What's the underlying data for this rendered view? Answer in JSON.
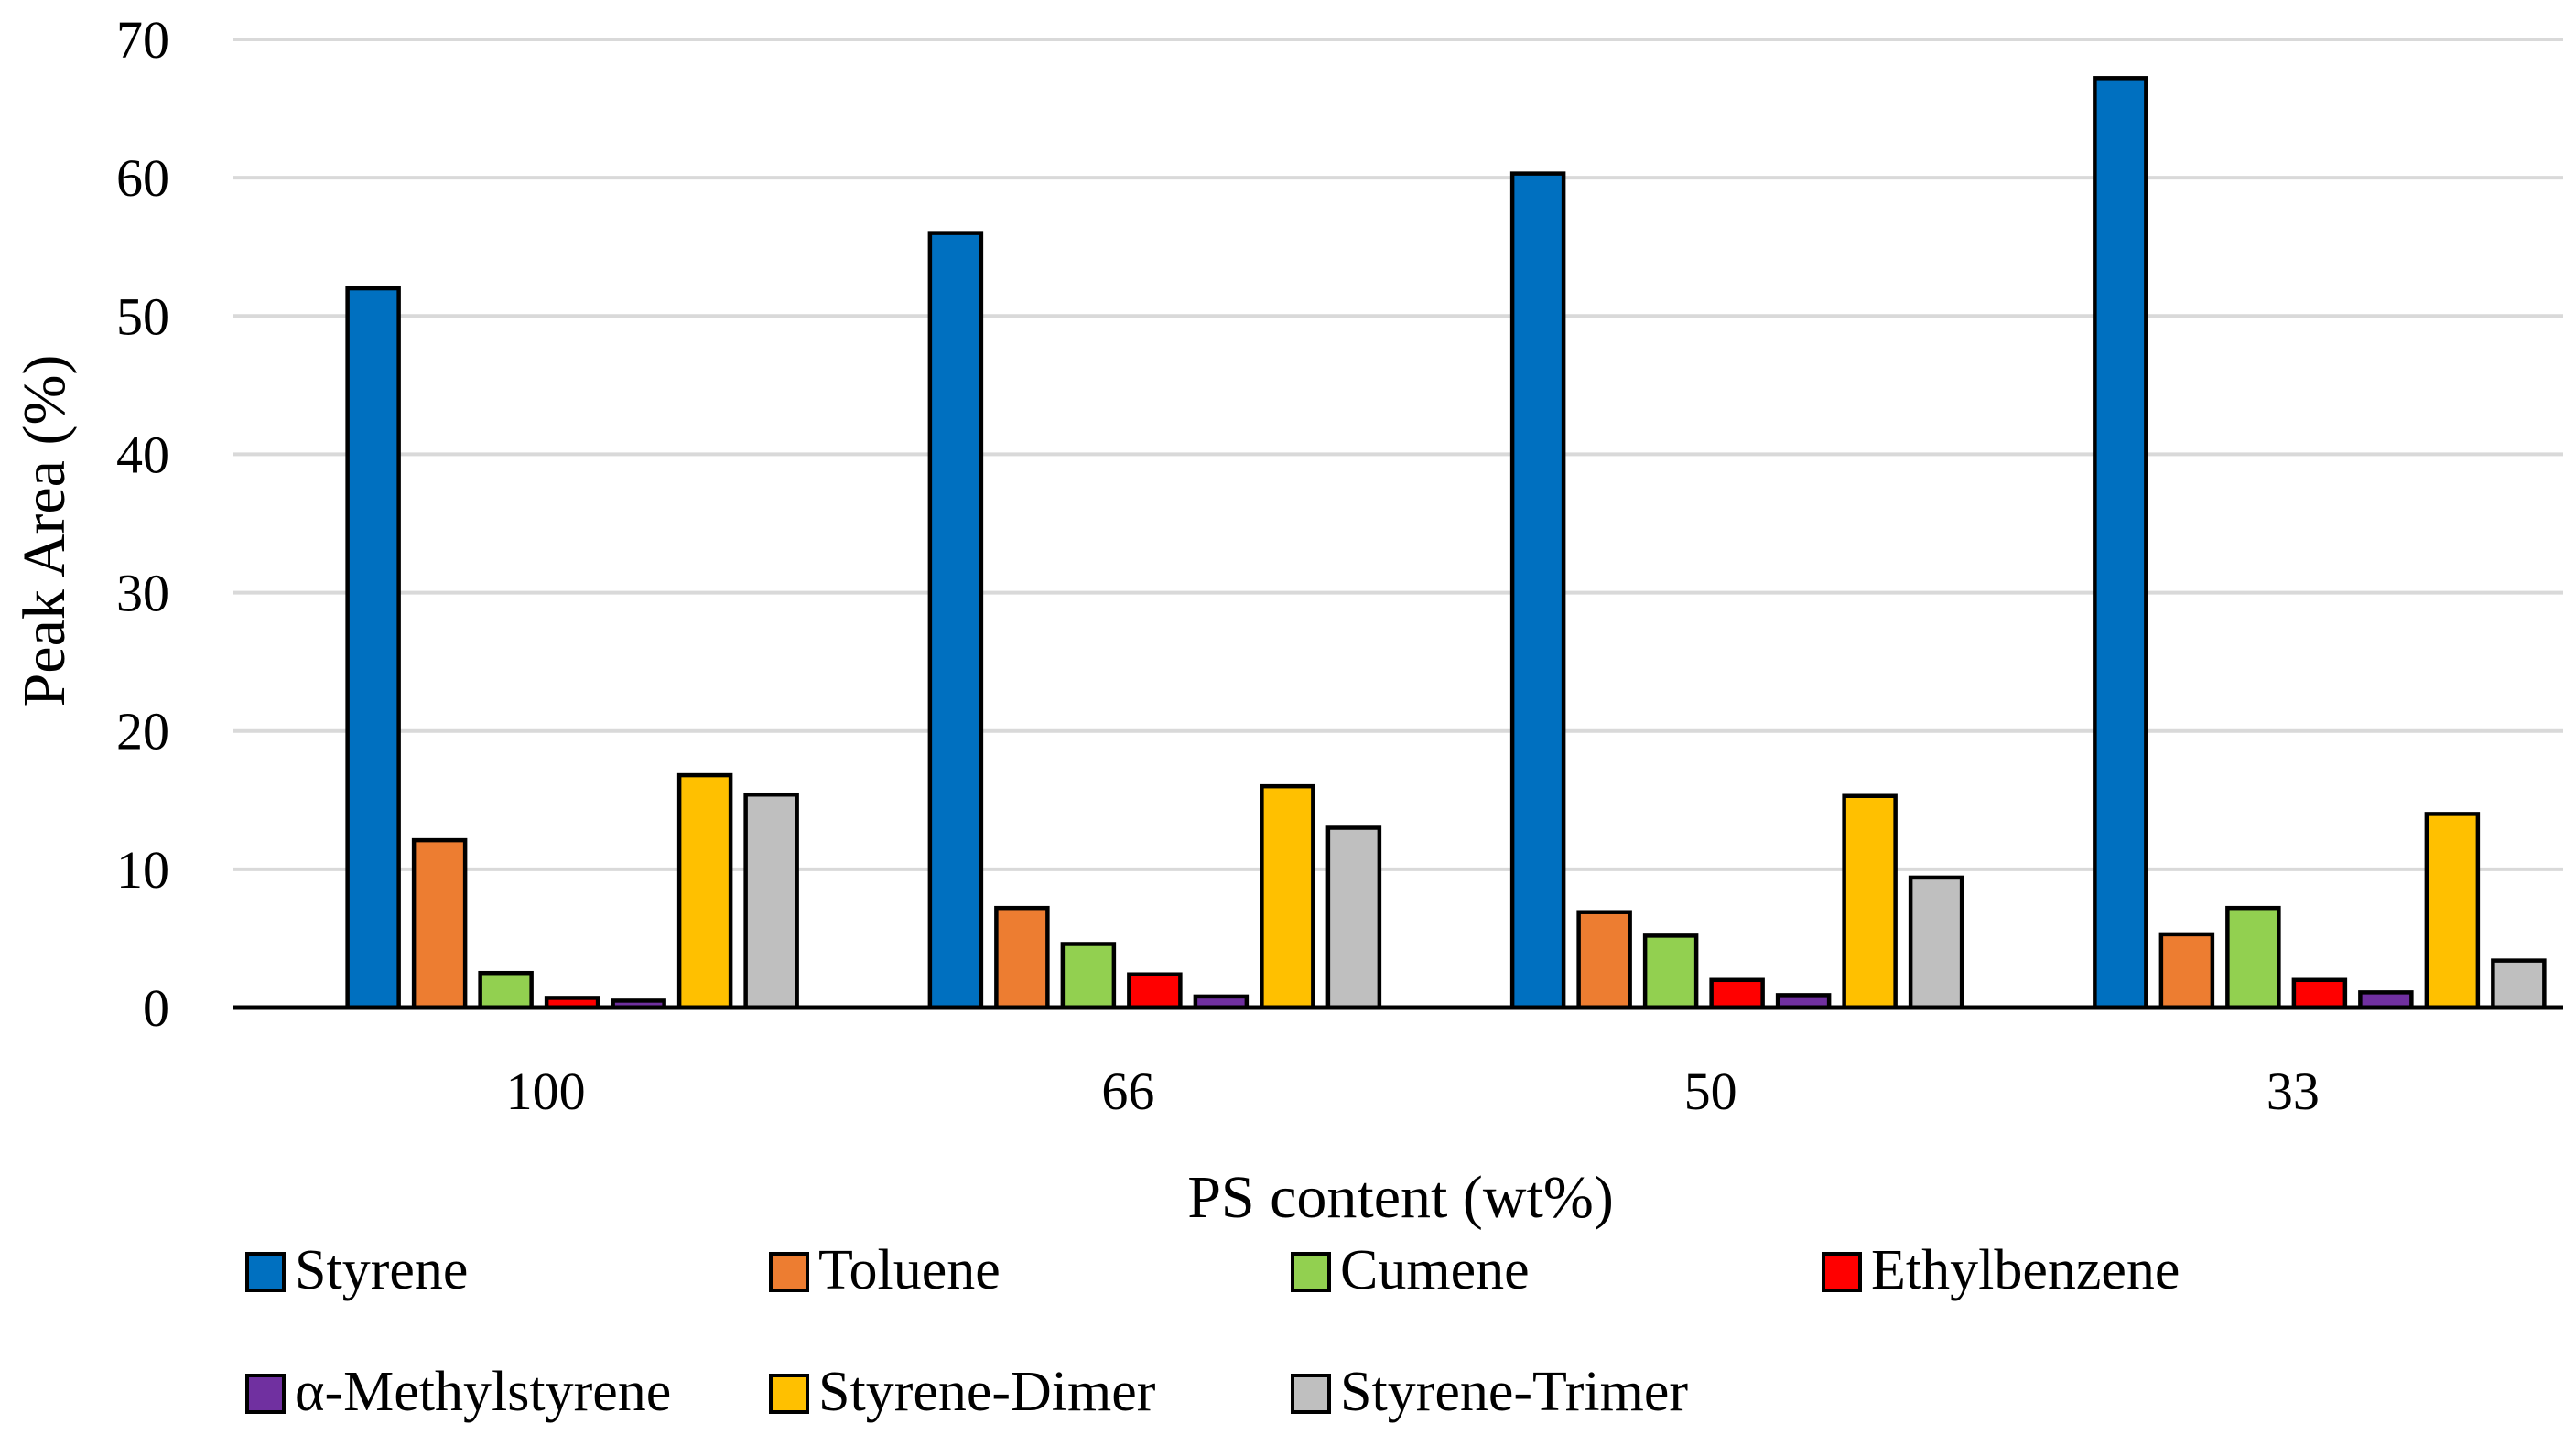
{
  "chart_data": {
    "type": "bar",
    "title": "",
    "xlabel": "PS content (wt%)",
    "ylabel": "Peak Area (%)",
    "ylim": [
      0,
      70
    ],
    "yticks": [
      0,
      10,
      20,
      30,
      40,
      50,
      60,
      70
    ],
    "grid": true,
    "legend_position": "bottom",
    "categories": [
      "100",
      "66",
      "50",
      "33"
    ],
    "series": [
      {
        "name": "Styrene",
        "color": "#0070C0",
        "values": [
          52.0,
          56.0,
          60.3,
          67.2
        ]
      },
      {
        "name": "Toluene",
        "color": "#ED7D31",
        "values": [
          12.1,
          7.2,
          6.9,
          5.3
        ]
      },
      {
        "name": "Cumene",
        "color": "#92D050",
        "values": [
          2.5,
          4.6,
          5.2,
          7.2
        ]
      },
      {
        "name": "Ethylbenzene",
        "color": "#FF0000",
        "values": [
          0.7,
          2.4,
          2.0,
          2.0
        ]
      },
      {
        "name": "α-Methylstyrene",
        "color": "#7030A0",
        "values": [
          0.5,
          0.8,
          0.9,
          1.1
        ]
      },
      {
        "name": "Styrene-Dimer",
        "color": "#FFC000",
        "values": [
          16.8,
          16.0,
          15.3,
          14.0
        ]
      },
      {
        "name": "Styrene-Trimer",
        "color": "#BFBFBF",
        "values": [
          15.4,
          13.0,
          9.4,
          3.4
        ]
      }
    ]
  }
}
